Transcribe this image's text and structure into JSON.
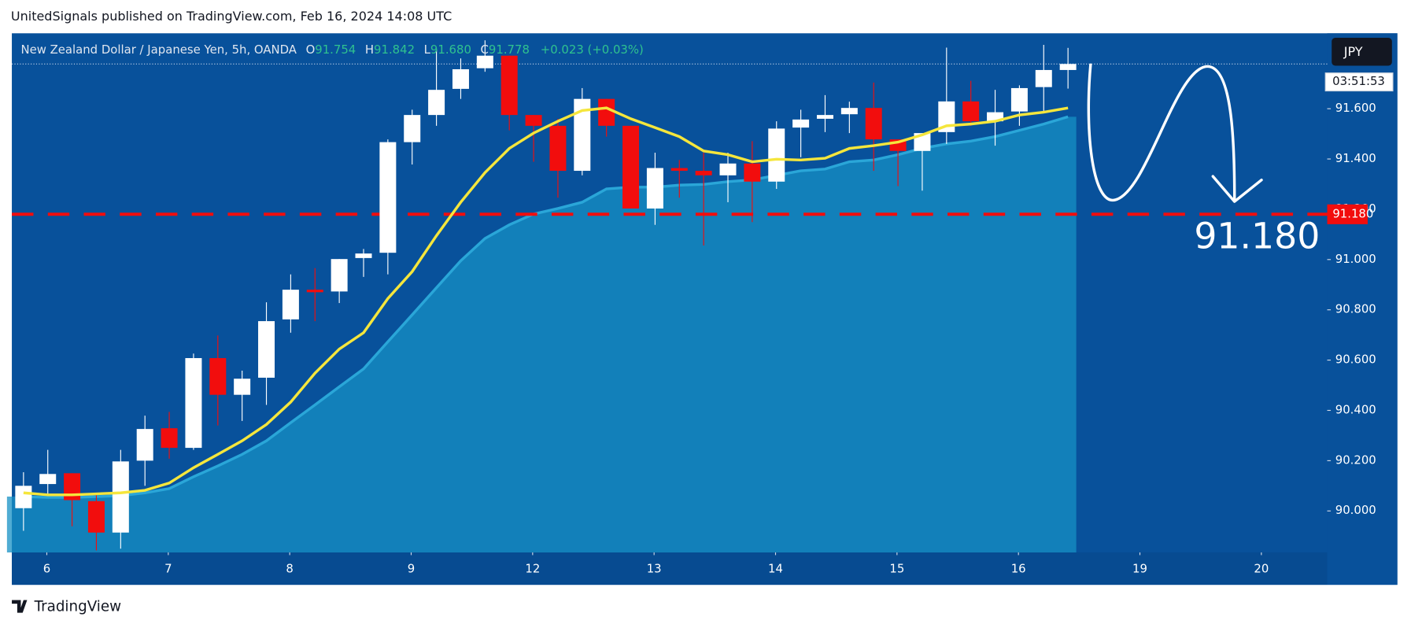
{
  "header": "UnitedSignals published on TradingView.com, Feb 16, 2024 14:08 UTC",
  "footer": "TradingView",
  "chart_data": {
    "type": "candlestick",
    "title": "New Zealand Dollar / Japanese Yen, 5h, OANDA",
    "ohlc_legend": {
      "o_label": "O",
      "o": "91.754",
      "h_label": "H",
      "h": "91.842",
      "l_label": "L",
      "l": "91.680",
      "c_label": "C",
      "c": "91.778",
      "change": "+0.023 (+0.03%)"
    },
    "currency": "JPY",
    "countdown": "03:51:53",
    "annotation": "91.180",
    "target": {
      "value": 91.18,
      "label": "91.180",
      "color": "#f20d0d"
    },
    "last_price": 91.778,
    "up_color": "#ffffff",
    "down_color": "#f20d0d",
    "x": [
      0,
      1,
      2,
      3,
      4,
      5,
      6,
      7,
      8,
      9,
      10,
      11,
      12,
      13,
      14,
      15,
      16,
      17,
      18,
      19,
      20,
      21,
      22,
      23,
      24,
      25,
      26,
      27,
      28,
      29,
      30,
      31,
      32,
      33,
      34,
      35,
      36,
      37,
      38,
      39,
      40,
      41,
      42,
      43
    ],
    "open": [
      90.011,
      90.107,
      90.15,
      90.039,
      89.914,
      90.2,
      90.329,
      90.251,
      90.608,
      90.462,
      90.53,
      90.762,
      90.88,
      90.873,
      91.006,
      91.027,
      91.467,
      91.575,
      91.679,
      91.761,
      91.811,
      91.575,
      91.532,
      91.353,
      91.639,
      91.532,
      91.203,
      91.364,
      91.353,
      91.335,
      91.382,
      91.31,
      91.525,
      91.56,
      91.578,
      91.603,
      91.478,
      91.432,
      91.507,
      91.629,
      91.55,
      91.589,
      91.686,
      91.754
    ],
    "high": [
      90.154,
      90.243,
      90.15,
      90.072,
      90.243,
      90.379,
      90.394,
      90.626,
      90.698,
      90.558,
      90.83,
      90.941,
      90.966,
      91.002,
      91.042,
      91.478,
      91.596,
      91.836,
      91.8,
      91.872,
      91.811,
      91.575,
      91.56,
      91.682,
      91.639,
      91.532,
      91.425,
      91.396,
      91.425,
      91.425,
      91.471,
      91.55,
      91.596,
      91.654,
      91.628,
      91.704,
      91.478,
      91.503,
      91.843,
      91.711,
      91.675,
      91.693,
      91.854,
      91.842
    ],
    "low": [
      89.921,
      90.064,
      89.939,
      89.843,
      89.85,
      90.1,
      90.208,
      90.243,
      90.34,
      90.358,
      90.422,
      90.709,
      90.755,
      90.827,
      90.931,
      90.941,
      91.378,
      91.532,
      91.639,
      91.747,
      91.514,
      91.389,
      91.246,
      91.335,
      91.489,
      91.203,
      91.138,
      91.246,
      91.056,
      91.228,
      91.149,
      91.281,
      91.407,
      91.507,
      91.503,
      91.353,
      91.292,
      91.274,
      91.46,
      91.532,
      91.453,
      91.532,
      91.586,
      91.68
    ],
    "close": [
      90.1,
      90.147,
      90.043,
      89.914,
      90.197,
      90.326,
      90.251,
      90.608,
      90.462,
      90.526,
      90.755,
      90.88,
      90.87,
      91.002,
      91.024,
      91.467,
      91.575,
      91.675,
      91.757,
      91.811,
      91.575,
      91.532,
      91.353,
      91.639,
      91.532,
      91.203,
      91.364,
      91.353,
      91.335,
      91.382,
      91.31,
      91.521,
      91.557,
      91.575,
      91.603,
      91.478,
      91.432,
      91.503,
      91.629,
      91.55,
      91.586,
      91.682,
      91.754,
      91.778
    ],
    "series": [
      {
        "color": "#f5e63c",
        "values": [
          90.072,
          90.064,
          90.064,
          90.068,
          90.072,
          90.082,
          90.111,
          90.172,
          90.225,
          90.279,
          90.344,
          90.433,
          90.548,
          90.644,
          90.709,
          90.845,
          90.952,
          91.095,
          91.228,
          91.346,
          91.442,
          91.503,
          91.55,
          91.593,
          91.603,
          91.56,
          91.525,
          91.489,
          91.432,
          91.417,
          91.389,
          91.399,
          91.396,
          91.403,
          91.442,
          91.453,
          91.467,
          91.496,
          91.532,
          91.539,
          91.55,
          91.575,
          91.586,
          91.603
        ]
      },
      {
        "color": "#1590c4",
        "values": [
          90.057,
          90.054,
          90.054,
          90.057,
          90.061,
          90.072,
          90.089,
          90.136,
          90.179,
          90.225,
          90.279,
          90.351,
          90.422,
          90.494,
          90.565,
          90.673,
          90.78,
          90.888,
          90.995,
          91.084,
          91.138,
          91.181,
          91.203,
          91.228,
          91.281,
          91.288,
          91.288,
          91.296,
          91.299,
          91.31,
          91.317,
          91.335,
          91.353,
          91.36,
          91.389,
          91.396,
          91.417,
          91.442,
          91.46,
          91.471,
          91.489,
          91.514,
          91.539,
          91.568
        ]
      }
    ],
    "xlim": [
      -0.48,
      53.67
    ],
    "xticks": [
      {
        "value": 0.96,
        "label": "6"
      },
      {
        "value": 5.96,
        "label": "7"
      },
      {
        "value": 10.96,
        "label": "8"
      },
      {
        "value": 15.96,
        "label": "9"
      },
      {
        "value": 20.96,
        "label": "12"
      },
      {
        "value": 25.96,
        "label": "13"
      },
      {
        "value": 30.96,
        "label": "14"
      },
      {
        "value": 35.96,
        "label": "15"
      },
      {
        "value": 40.96,
        "label": "16"
      },
      {
        "value": 45.96,
        "label": "19"
      },
      {
        "value": 50.96,
        "label": "20"
      }
    ],
    "ylim": [
      89.835,
      91.9
    ],
    "yticks": [
      {
        "value": 90,
        "label": "90.000"
      },
      {
        "value": 90.2,
        "label": "90.200"
      },
      {
        "value": 90.4,
        "label": "90.400"
      },
      {
        "value": 90.6,
        "label": "90.600"
      },
      {
        "value": 90.8,
        "label": "90.800"
      },
      {
        "value": 91,
        "label": "91.000"
      },
      {
        "value": 91.2,
        "label": "91.200"
      },
      {
        "value": 91.4,
        "label": "91.400"
      },
      {
        "value": 91.6,
        "label": "91.600"
      }
    ]
  }
}
